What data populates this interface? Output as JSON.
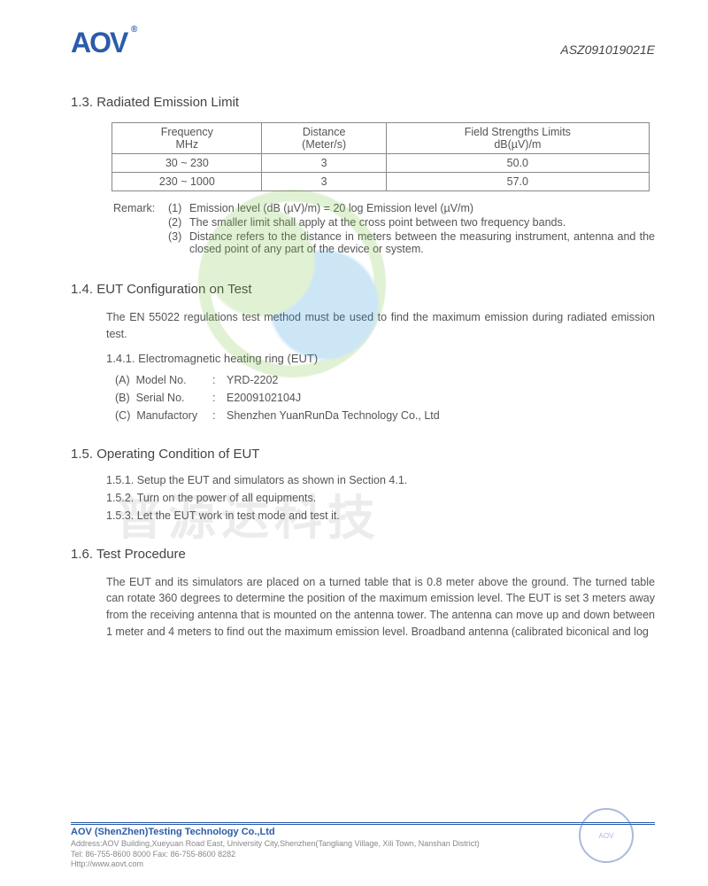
{
  "header": {
    "logo_text": "AOV",
    "doc_id": "ASZ091019021E"
  },
  "section13": {
    "num": "1.3.",
    "title": "Radiated Emission Limit",
    "table": {
      "headers": [
        "Frequency\nMHz",
        "Distance\n(Meter/s)",
        "Field Strengths Limits\ndB(µV)/m"
      ],
      "rows": [
        [
          "30 ~ 230",
          "3",
          "50.0"
        ],
        [
          "230 ~ 1000",
          "3",
          "57.0"
        ]
      ]
    },
    "remark_label": "Remark:",
    "remarks": [
      "Emission level (dB (µV)/m) = 20 log Emission level (µV/m)",
      "The smaller limit shall apply at the cross point between two frequency bands.",
      "Distance refers to the distance in meters between the measuring instrument, antenna and the closed point of any part of the device or system."
    ]
  },
  "section14": {
    "num": "1.4.",
    "title": "EUT Configuration on Test",
    "intro": "The EN 55022 regulations test method must be used to find the maximum emission during radiated emission test.",
    "sub_num": "1.4.1.",
    "sub_title": "Electromagnetic heating ring (EUT)",
    "items": [
      {
        "k": "(A)",
        "label": "Model No.",
        "sep": ":",
        "val": "YRD-2202"
      },
      {
        "k": "(B)",
        "label": "Serial No.",
        "sep": ":",
        "val": "E2009102104J"
      },
      {
        "k": "(C)",
        "label": "Manufactory",
        "sep": ":",
        "val": "Shenzhen YuanRunDa Technology Co., Ltd"
      }
    ]
  },
  "section15": {
    "num": "1.5.",
    "title": "Operating Condition of EUT",
    "steps": [
      {
        "n": "1.5.1.",
        "t": "Setup the EUT and simulators as shown in Section 4.1."
      },
      {
        "n": "1.5.2.",
        "t": "Turn on the power of all equipments."
      },
      {
        "n": "1.5.3.",
        "t": "Let the EUT work in test mode and test it."
      }
    ]
  },
  "section16": {
    "num": "1.6.",
    "title": "Test Procedure",
    "body": "The EUT and its simulators are placed on a turned table that is 0.8 meter above the ground. The turned table can rotate 360 degrees to determine the position of the maximum emission level. The EUT is set 3 meters away from the receiving antenna that is mounted on the antenna tower. The antenna can move up and down between 1 meter and 4 meters to find out the maximum emission level. Broadband antenna (calibrated biconical and log"
  },
  "footer": {
    "company": "AOV (ShenZhen)Testing Technology Co.,Ltd",
    "addr1": "Address:AOV Building,Xueyuan Road East, University City,Shenzhen(Tangliang Village, Xili Town, Nanshan District)",
    "addr2": "Tel: 86-755-8600 8000   Fax: 86-755-8600 8282",
    "addr3": "Http://www.aovt.com"
  },
  "watermark_text": "普源达科技",
  "colors": {
    "brand_blue": "#2a5caa",
    "text": "#555555",
    "border": "#888888",
    "wm_green": "#7cc242",
    "wm_blue": "#1a8fd8"
  }
}
